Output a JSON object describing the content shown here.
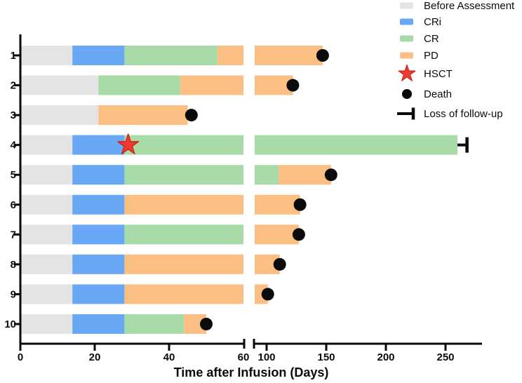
{
  "chart_data": {
    "type": "bar",
    "variant": "swimmer-plot-broken-axis",
    "title": "",
    "xlabel": "Time after Infusion (Days)",
    "x_axis": {
      "break": true,
      "left_panel": {
        "domain": [
          0,
          60
        ],
        "ticks": [
          0,
          20,
          40,
          60
        ]
      },
      "right_panel": {
        "domain": [
          90,
          280
        ],
        "ticks": [
          100,
          150,
          200,
          250
        ]
      }
    },
    "colors": {
      "Before Assessment": "#E4E4E4",
      "CRi": "#69A8F4",
      "CR": "#A9DBA8",
      "PD": "#FBBF84",
      "HSCT": "#EE3B2F",
      "HSCT_stroke": "#C9271F",
      "Death": "#0B0B0B",
      "axis": "#0B0B0B"
    },
    "legend": [
      {
        "label": "Before Assessment",
        "marker": "swatch",
        "color_key": "Before Assessment"
      },
      {
        "label": "CRi",
        "marker": "swatch",
        "color_key": "CRi"
      },
      {
        "label": "CR",
        "marker": "swatch",
        "color_key": "CR"
      },
      {
        "label": "PD",
        "marker": "swatch",
        "color_key": "PD"
      },
      {
        "label": "HSCT",
        "marker": "star",
        "color_key": "HSCT"
      },
      {
        "label": "Death",
        "marker": "dot",
        "color_key": "Death"
      },
      {
        "label": "Loss of follow-up",
        "marker": "tbar",
        "color_key": "Death"
      }
    ],
    "patients": [
      {
        "id": "1",
        "segments": [
          {
            "state": "Before Assessment",
            "start": 0,
            "end": 14
          },
          {
            "state": "CRi",
            "start": 14,
            "end": 28
          },
          {
            "state": "CR",
            "start": 28,
            "end": 53
          },
          {
            "state": "PD",
            "start": 53,
            "end": 147
          }
        ],
        "events": [
          {
            "type": "Death",
            "day": 147
          }
        ]
      },
      {
        "id": "2",
        "segments": [
          {
            "state": "Before Assessment",
            "start": 0,
            "end": 21
          },
          {
            "state": "CR",
            "start": 21,
            "end": 43
          },
          {
            "state": "PD",
            "start": 43,
            "end": 122
          }
        ],
        "events": [
          {
            "type": "Death",
            "day": 122
          }
        ]
      },
      {
        "id": "3",
        "segments": [
          {
            "state": "Before Assessment",
            "start": 0,
            "end": 21
          },
          {
            "state": "PD",
            "start": 21,
            "end": 45
          }
        ],
        "events": [
          {
            "type": "Death",
            "day": 46
          }
        ]
      },
      {
        "id": "4",
        "segments": [
          {
            "state": "Before Assessment",
            "start": 0,
            "end": 14
          },
          {
            "state": "CRi",
            "start": 14,
            "end": 28
          },
          {
            "state": "CR",
            "start": 28,
            "end": 260
          }
        ],
        "events": [
          {
            "type": "HSCT",
            "day": 29
          },
          {
            "type": "Loss of follow-up",
            "day": 268
          }
        ]
      },
      {
        "id": "5",
        "segments": [
          {
            "state": "Before Assessment",
            "start": 0,
            "end": 14
          },
          {
            "state": "CRi",
            "start": 14,
            "end": 28
          },
          {
            "state": "CR",
            "start": 28,
            "end": 110
          },
          {
            "state": "PD",
            "start": 110,
            "end": 154
          }
        ],
        "events": [
          {
            "type": "Death",
            "day": 154
          }
        ]
      },
      {
        "id": "6",
        "segments": [
          {
            "state": "Before Assessment",
            "start": 0,
            "end": 14
          },
          {
            "state": "CRi",
            "start": 14,
            "end": 28
          },
          {
            "state": "PD",
            "start": 28,
            "end": 128
          }
        ],
        "events": [
          {
            "type": "Death",
            "day": 128
          }
        ]
      },
      {
        "id": "7",
        "segments": [
          {
            "state": "Before Assessment",
            "start": 0,
            "end": 14
          },
          {
            "state": "CRi",
            "start": 14,
            "end": 28
          },
          {
            "state": "CR",
            "start": 28,
            "end": 60
          },
          {
            "state": "PD",
            "start": 60,
            "end": 127
          }
        ],
        "events": [
          {
            "type": "Death",
            "day": 127
          }
        ]
      },
      {
        "id": "8",
        "segments": [
          {
            "state": "Before Assessment",
            "start": 0,
            "end": 14
          },
          {
            "state": "CRi",
            "start": 14,
            "end": 28
          },
          {
            "state": "PD",
            "start": 28,
            "end": 111
          }
        ],
        "events": [
          {
            "type": "Death",
            "day": 111
          }
        ]
      },
      {
        "id": "9",
        "segments": [
          {
            "state": "Before Assessment",
            "start": 0,
            "end": 14
          },
          {
            "state": "CRi",
            "start": 14,
            "end": 28
          },
          {
            "state": "PD",
            "start": 28,
            "end": 101
          }
        ],
        "events": [
          {
            "type": "Death",
            "day": 101
          }
        ]
      },
      {
        "id": "10",
        "segments": [
          {
            "state": "Before Assessment",
            "start": 0,
            "end": 14
          },
          {
            "state": "CRi",
            "start": 14,
            "end": 28
          },
          {
            "state": "CR",
            "start": 28,
            "end": 44
          },
          {
            "state": "PD",
            "start": 44,
            "end": 50
          }
        ],
        "events": [
          {
            "type": "Death",
            "day": 50
          }
        ]
      }
    ]
  }
}
